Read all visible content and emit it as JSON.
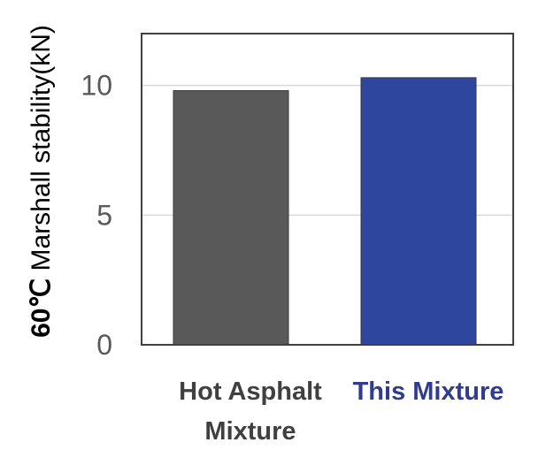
{
  "chart_data": {
    "type": "bar",
    "title": "",
    "xlabel": "",
    "ylabel_prefix": "60℃",
    "ylabel_rest": " Marshall stability(kN)",
    "ylim": [
      0,
      12
    ],
    "yticks": [
      0,
      5,
      10
    ],
    "grid": true,
    "categories": [
      {
        "lines": [
          "Hot Asphalt",
          "Mixture"
        ],
        "color": "#404040"
      },
      {
        "lines": [
          "This Mixture"
        ],
        "color": "#2F3C8F"
      }
    ],
    "values": [
      9.8,
      10.3
    ],
    "bar_colors": [
      "#595959",
      "#2E469E"
    ]
  }
}
